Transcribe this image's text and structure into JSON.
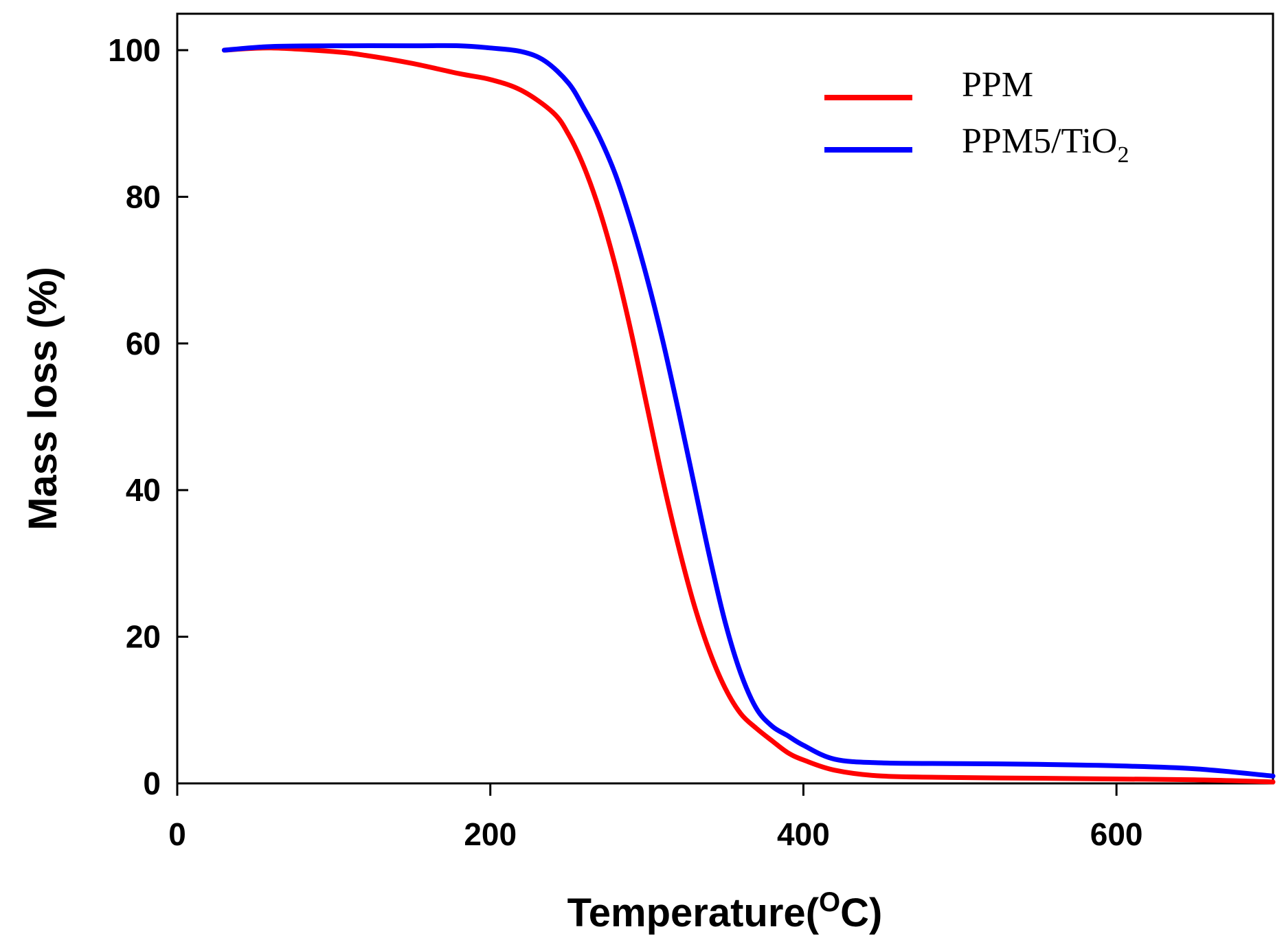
{
  "chart_data": {
    "type": "line",
    "title": "",
    "xlabel": "Temperature(",
    "xlabel_superscript": "O",
    "xlabel_suffix": "C)",
    "ylabel": "Mass loss (%)",
    "xlim": [
      0,
      700
    ],
    "ylim": [
      0,
      105
    ],
    "x_ticks": [
      0,
      200,
      400,
      600
    ],
    "y_ticks": [
      0,
      20,
      40,
      60,
      80,
      100
    ],
    "grid": false,
    "legend_position": "top-right",
    "series": [
      {
        "name": "PPM",
        "legend_main": "PPM",
        "legend_sub": "",
        "color": "#ff0000",
        "x": [
          30,
          60,
          100,
          120,
          150,
          180,
          200,
          220,
          240,
          250,
          260,
          270,
          280,
          290,
          300,
          310,
          320,
          330,
          340,
          350,
          360,
          370,
          380,
          390,
          400,
          420,
          450,
          500,
          550,
          600,
          650,
          700
        ],
        "y": [
          100,
          100.3,
          99.8,
          99.3,
          98.2,
          96.8,
          96,
          94.5,
          91.5,
          88.5,
          84,
          78,
          70.5,
          61.5,
          51.5,
          41.5,
          32.5,
          24.5,
          18,
          13,
          9.5,
          7.5,
          5.8,
          4.2,
          3.2,
          1.8,
          1,
          0.8,
          0.7,
          0.6,
          0.5,
          0.2
        ]
      },
      {
        "name": "PPM5/TiO2",
        "legend_main": "PPM5/TiO",
        "legend_sub": "2",
        "color": "#0000ff",
        "x": [
          30,
          60,
          100,
          150,
          180,
          200,
          220,
          235,
          250,
          260,
          270,
          280,
          290,
          300,
          310,
          320,
          330,
          340,
          350,
          360,
          370,
          380,
          390,
          400,
          420,
          450,
          500,
          550,
          600,
          650,
          700
        ],
        "y": [
          100,
          100.5,
          100.6,
          100.6,
          100.6,
          100.3,
          99.8,
          98.5,
          95.5,
          92,
          88,
          83,
          76.5,
          69,
          60.5,
          51,
          41,
          31,
          22,
          15,
          10.2,
          7.8,
          6.5,
          5.2,
          3.3,
          2.8,
          2.7,
          2.6,
          2.4,
          2,
          1
        ]
      }
    ]
  }
}
